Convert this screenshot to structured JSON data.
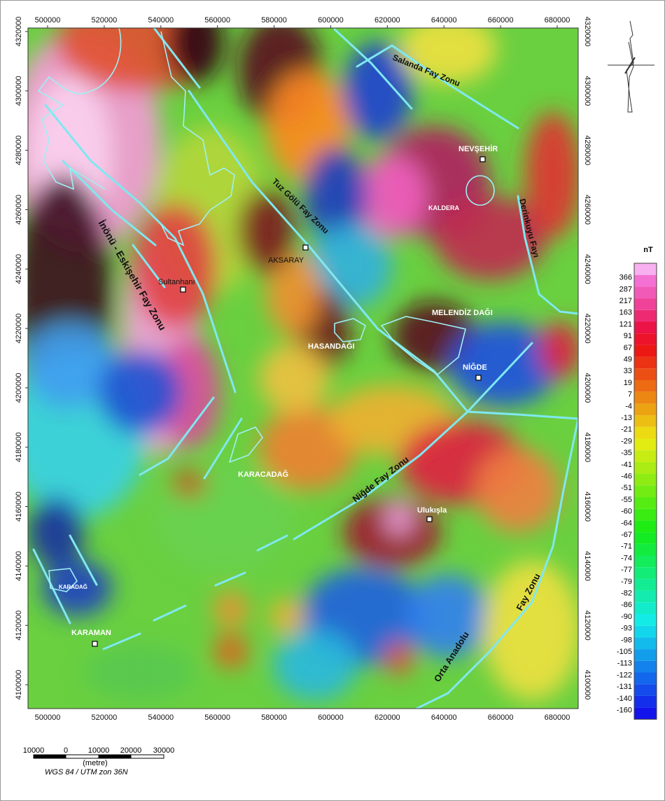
{
  "map": {
    "xticks": [
      500000,
      520000,
      540000,
      560000,
      580000,
      600000,
      620000,
      640000,
      660000,
      680000
    ],
    "yticks": [
      4100000,
      4120000,
      4140000,
      4160000,
      4180000,
      4200000,
      4220000,
      4240000,
      4260000,
      4280000,
      4300000,
      4320000
    ],
    "places": [
      "NEVŞEHİR",
      "KALDERA",
      "AKSARAY",
      "Sultanhanı",
      "MELENDİZ DAĞI",
      "HASANDAĞI",
      "NİĞDE",
      "KARACADAĞ",
      "Ulukışla",
      "KARADAĞ",
      "KARAMAN"
    ],
    "faults": [
      "Salanda Fay Zonu",
      "Derinkuyu Fayı",
      "Tuz Gölü Fay Zonu",
      "İnönü - Eskişehir Fay Zonu",
      "Niğde Fay Zonu",
      "Orta Anadolu",
      "Fay Zonu"
    ],
    "legend": {
      "title": "nT",
      "values": [
        366,
        287,
        217,
        163,
        121,
        91,
        67,
        49,
        33,
        19,
        7,
        -4,
        -13,
        -21,
        -29,
        -35,
        -41,
        -46,
        -51,
        -55,
        -60,
        -64,
        -67,
        -71,
        -74,
        -77,
        -79,
        -82,
        -86,
        -90,
        -93,
        -98,
        -105,
        -113,
        -122,
        -131,
        -140,
        -160
      ]
    },
    "scale_bar": {
      "labels": [
        "10000",
        "0",
        "10000",
        "20000",
        "30000"
      ],
      "unit": "(metre)"
    },
    "projection": "WGS 84 / UTM zon 36N"
  }
}
